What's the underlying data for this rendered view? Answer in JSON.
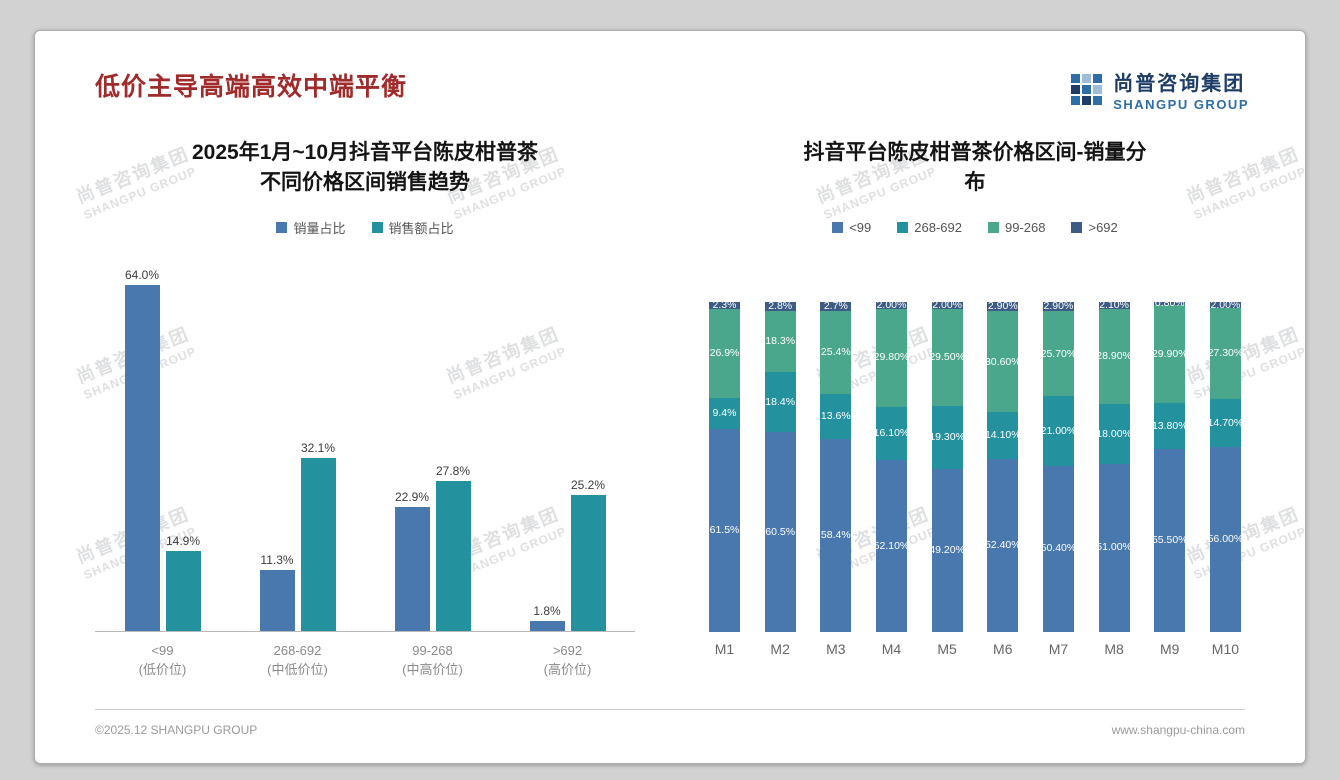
{
  "slide": {
    "title": "低价主导高端高效中端平衡",
    "logo": {
      "cn": "尚普咨询集团",
      "en": "SHANGPU GROUP"
    },
    "watermark": {
      "line1": "尚普咨询集团",
      "line2": "SHANGPU GROUP"
    },
    "footer": {
      "left": "©2025.12 SHANGPU GROUP",
      "right": "www.shangpu-china.com"
    }
  },
  "colors": {
    "title_red": "#a12a2a",
    "series_blue": "#4878ad",
    "series_teal": "#23919e",
    "series_green": "#4aa78c",
    "series_navy": "#3d5c85",
    "logo_navy": "#1d3d66",
    "logo_blue": "#2d6da8"
  },
  "chart_data": [
    {
      "type": "bar",
      "title": "2025年1月~10月抖音平台陈皮柑普茶\n不同价格区间销售趋势",
      "legend_position": "top",
      "grid": false,
      "ylim": [
        0,
        70
      ],
      "value_unit": "%",
      "categories": [
        {
          "label": "<99",
          "sublabel": "(低价位)"
        },
        {
          "label": "268-692",
          "sublabel": "(中低价位)"
        },
        {
          "label": "99-268",
          "sublabel": "(中高价位)"
        },
        {
          "label": ">692",
          "sublabel": "(高价位)"
        }
      ],
      "series": [
        {
          "name": "销量占比",
          "color": "#4878ad",
          "values": [
            64.0,
            11.3,
            22.9,
            1.8
          ],
          "labels": [
            "64.0%",
            "11.3%",
            "22.9%",
            "1.8%"
          ]
        },
        {
          "name": "销售额占比",
          "color": "#23919e",
          "values": [
            14.9,
            32.1,
            27.8,
            25.2
          ],
          "labels": [
            "14.9%",
            "32.1%",
            "27.8%",
            "25.2%"
          ]
        }
      ]
    },
    {
      "type": "bar",
      "subtype": "stacked",
      "title": "抖音平台陈皮柑普茶价格区间-销量分\n布",
      "legend_position": "top",
      "grid": false,
      "ylim": [
        0,
        100
      ],
      "value_unit": "%",
      "categories": [
        "M1",
        "M2",
        "M3",
        "M4",
        "M5",
        "M6",
        "M7",
        "M8",
        "M9",
        "M10"
      ],
      "series": [
        {
          "name": "<99",
          "color": "#4878ad",
          "values": [
            61.5,
            60.5,
            58.4,
            52.1,
            49.2,
            52.4,
            50.4,
            51.0,
            55.5,
            56.0
          ],
          "labels": [
            "61.5%",
            "60.5%",
            "58.4%",
            "52.10%",
            "49.20%",
            "52.40%",
            "50.40%",
            "51.00%",
            "55.50%",
            "56.00%"
          ]
        },
        {
          "name": "268-692",
          "color": "#23919e",
          "values": [
            9.4,
            18.4,
            13.6,
            16.1,
            19.3,
            14.1,
            21.0,
            18.0,
            13.8,
            14.7
          ],
          "labels": [
            "9.4%",
            "18.4%",
            "13.6%",
            "16.10%",
            "19.30%",
            "14.10%",
            "21.00%",
            "18.00%",
            "13.80%",
            "14.70%"
          ]
        },
        {
          "name": "99-268",
          "color": "#4aa78c",
          "values": [
            26.9,
            18.3,
            25.4,
            29.8,
            29.5,
            30.6,
            25.7,
            28.9,
            29.9,
            27.3
          ],
          "labels": [
            "26.9%",
            "18.3%",
            "25.4%",
            "29.80%",
            "29.50%",
            "30.60%",
            "25.70%",
            "28.90%",
            "29.90%",
            "27.30%"
          ]
        },
        {
          "name": ">692",
          "color": "#3d5c85",
          "values": [
            2.3,
            2.8,
            2.7,
            2.0,
            2.0,
            2.9,
            2.9,
            2.1,
            0.8,
            2.0
          ],
          "labels": [
            "2.3%",
            "2.8%",
            "2.7%",
            "2.00%",
            "2.00%",
            "2.90%",
            "2.90%",
            "2.10%",
            "0.80%",
            "2.00%"
          ]
        }
      ]
    }
  ]
}
